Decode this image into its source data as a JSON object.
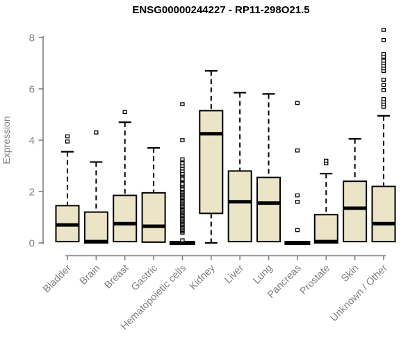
{
  "colors": {
    "background": "#ffffff",
    "axis": "#7f7f7f",
    "label_text": "#7f7f7f",
    "title_text": "#000000",
    "box_fill": "#EBE4C7",
    "box_stroke": "#000000",
    "outlier_fill": "#ffffff"
  },
  "chart_data": {
    "type": "boxplot",
    "title": "ENSG00000244227 - RP11-298O21.5",
    "ylabel": "Expression",
    "xlabel": "",
    "ylim": [
      0,
      8.4
    ],
    "yticks": [
      0,
      2,
      4,
      6,
      8
    ],
    "grid": "off",
    "legend": "none",
    "categories": [
      "Bladder",
      "Brain",
      "Breast",
      "Gastric",
      "Hematopoietic cells",
      "Kidney",
      "Liver",
      "Lung",
      "Pancreas",
      "Prostate",
      "Skin",
      "Unknown / Other"
    ],
    "series": [
      {
        "category": "Bladder",
        "min": 0.05,
        "q1": 0.05,
        "median": 0.7,
        "q3": 1.45,
        "max": 3.55,
        "outliers": [
          3.95,
          4.15
        ]
      },
      {
        "category": "Brain",
        "min": 0.0,
        "q1": 0.0,
        "median": 0.05,
        "q3": 1.2,
        "max": 3.15,
        "outliers": [
          4.3
        ]
      },
      {
        "category": "Breast",
        "min": 0.05,
        "q1": 0.05,
        "median": 0.75,
        "q3": 1.85,
        "max": 4.7,
        "outliers": [
          5.1
        ]
      },
      {
        "category": "Gastric",
        "min": 0.03,
        "q1": 0.03,
        "median": 0.65,
        "q3": 1.95,
        "max": 3.7,
        "outliers": []
      },
      {
        "category": "Hematopoietic cells",
        "min": 0.0,
        "q1": 0.0,
        "median": 0.0,
        "q3": 0.0,
        "max": 0.0,
        "outliers": [
          0.1,
          0.4,
          0.45,
          0.5,
          0.55,
          0.6,
          0.65,
          0.7,
          0.75,
          0.8,
          0.85,
          0.9,
          0.95,
          1.0,
          1.05,
          1.1,
          1.15,
          1.2,
          1.25,
          1.3,
          1.35,
          1.4,
          1.45,
          1.5,
          1.55,
          1.6,
          1.65,
          1.7,
          1.75,
          1.8,
          1.85,
          1.9,
          1.95,
          2.0,
          2.05,
          2.1,
          2.2,
          2.25,
          2.3,
          2.4,
          2.45,
          2.5,
          2.6,
          2.65,
          2.7,
          2.8,
          2.9,
          3.0,
          3.1,
          3.25,
          4.0,
          5.4
        ]
      },
      {
        "category": "Kidney",
        "min": 0.0,
        "q1": 1.15,
        "median": 4.25,
        "q3": 5.15,
        "max": 6.7,
        "outliers": []
      },
      {
        "category": "Liver",
        "min": 0.05,
        "q1": 0.05,
        "median": 1.6,
        "q3": 2.8,
        "max": 5.85,
        "outliers": []
      },
      {
        "category": "Lung",
        "min": 0.05,
        "q1": 0.05,
        "median": 1.55,
        "q3": 2.55,
        "max": 5.8,
        "outliers": []
      },
      {
        "category": "Pancreas",
        "min": 0.0,
        "q1": 0.0,
        "median": 0.0,
        "q3": 0.0,
        "max": 0.0,
        "outliers": [
          0.5,
          1.6,
          1.85,
          3.6,
          5.45
        ]
      },
      {
        "category": "Prostate",
        "min": 0.0,
        "q1": 0.0,
        "median": 0.05,
        "q3": 1.1,
        "max": 2.7,
        "outliers": [
          3.1,
          3.2
        ]
      },
      {
        "category": "Skin",
        "min": 0.05,
        "q1": 0.05,
        "median": 1.35,
        "q3": 2.4,
        "max": 4.05,
        "outliers": []
      },
      {
        "category": "Unknown / Other",
        "min": 0.05,
        "q1": 0.05,
        "median": 0.75,
        "q3": 2.2,
        "max": 4.95,
        "outliers": [
          5.3,
          5.4,
          5.5,
          5.6,
          5.95,
          6.15,
          6.35,
          6.7,
          6.8,
          6.9,
          7.0,
          7.1,
          7.25,
          7.35,
          7.9,
          8.3
        ]
      }
    ]
  }
}
